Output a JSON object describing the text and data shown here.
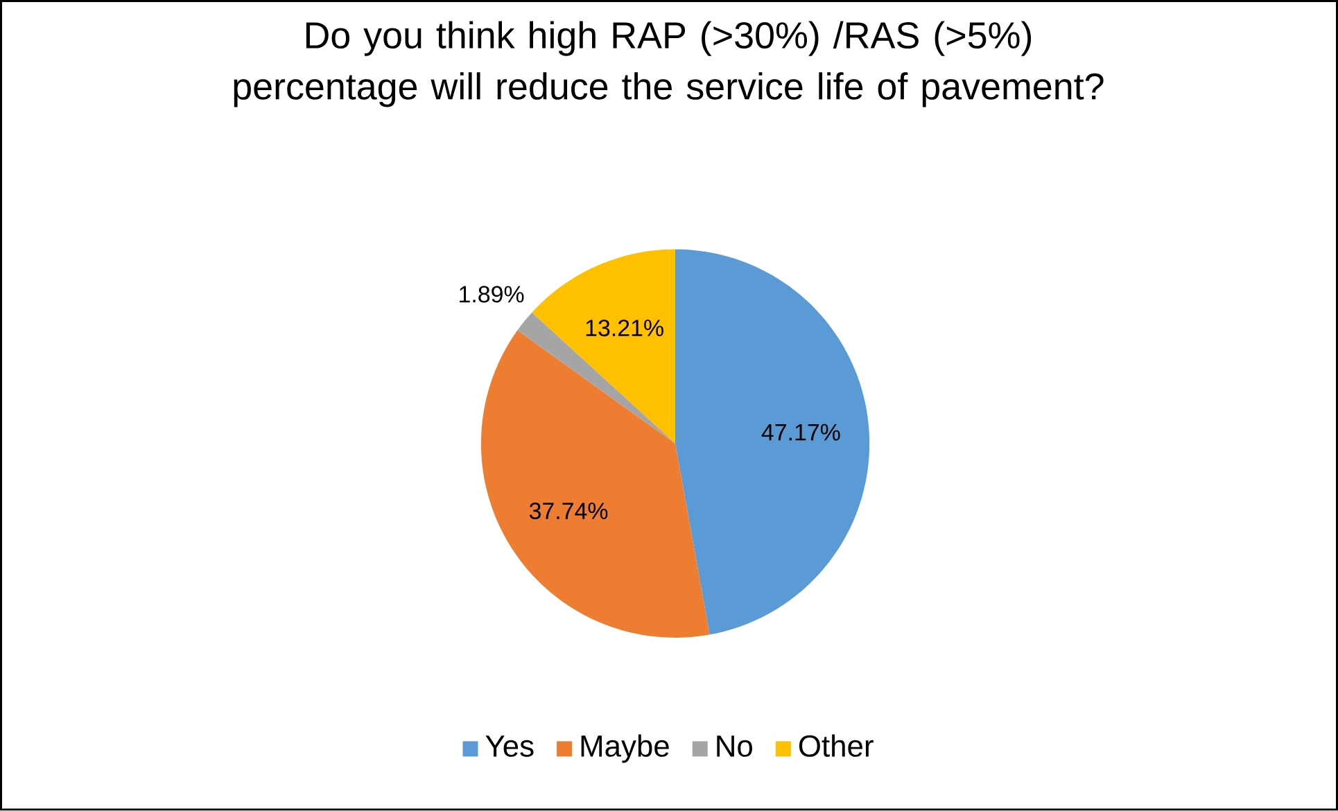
{
  "chart_data": {
    "type": "pie",
    "title": "Do you think high RAP (>30%) /RAS (>5%) percentage will reduce the service life of pavement?",
    "categories": [
      "Yes",
      "Maybe",
      "No",
      "Other"
    ],
    "values": [
      47.17,
      37.74,
      1.89,
      13.21
    ],
    "colors": [
      "#5b9bd5",
      "#ed7d31",
      "#a5a5a5",
      "#ffc000"
    ],
    "value_labels": [
      "47.17%",
      "37.74%",
      "1.89%",
      "13.21%"
    ],
    "legend": "bottom"
  }
}
